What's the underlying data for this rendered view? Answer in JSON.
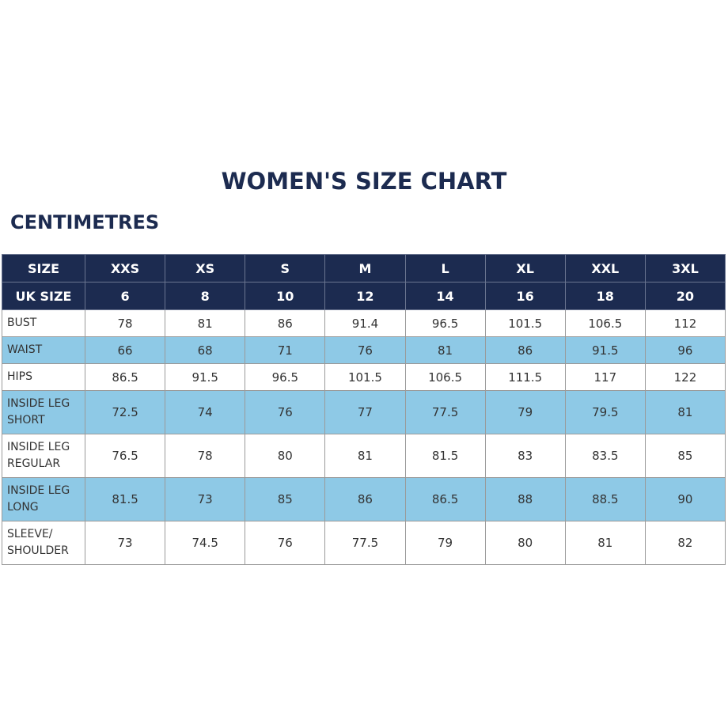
{
  "title": "WOMEN'S SIZE CHART",
  "subtitle": "CENTIMETRES",
  "table": {
    "header_rows": [
      [
        "SIZE",
        "XXS",
        "XS",
        "S",
        "M",
        "L",
        "XL",
        "XXL",
        "3XL"
      ],
      [
        "UK SIZE",
        6,
        8,
        10,
        12,
        14,
        16,
        18,
        20
      ]
    ],
    "rows": [
      {
        "label": [
          "BUST"
        ],
        "values": [
          78,
          81,
          86,
          91.4,
          96.5,
          101.5,
          106.5,
          112
        ]
      },
      {
        "label": [
          "WAIST"
        ],
        "values": [
          66,
          68,
          71,
          76,
          81,
          86,
          91.5,
          96
        ]
      },
      {
        "label": [
          "HIPS"
        ],
        "values": [
          86.5,
          91.5,
          96.5,
          101.5,
          106.5,
          111.5,
          117,
          122
        ]
      },
      {
        "label": [
          "INSIDE LEG",
          "SHORT"
        ],
        "values": [
          72.5,
          74,
          76,
          77,
          77.5,
          79,
          79.5,
          81
        ]
      },
      {
        "label": [
          "INSIDE LEG",
          "REGULAR"
        ],
        "values": [
          76.5,
          78,
          80,
          81,
          81.5,
          83,
          83.5,
          85
        ]
      },
      {
        "label": [
          "INSIDE LEG",
          "LONG"
        ],
        "values": [
          81.5,
          73,
          85,
          86,
          86.5,
          88,
          88.5,
          90
        ]
      },
      {
        "label": [
          "SLEEVE/",
          "SHOULDER"
        ],
        "values": [
          73,
          74.5,
          76,
          77.5,
          79,
          80,
          81,
          82
        ]
      }
    ]
  }
}
